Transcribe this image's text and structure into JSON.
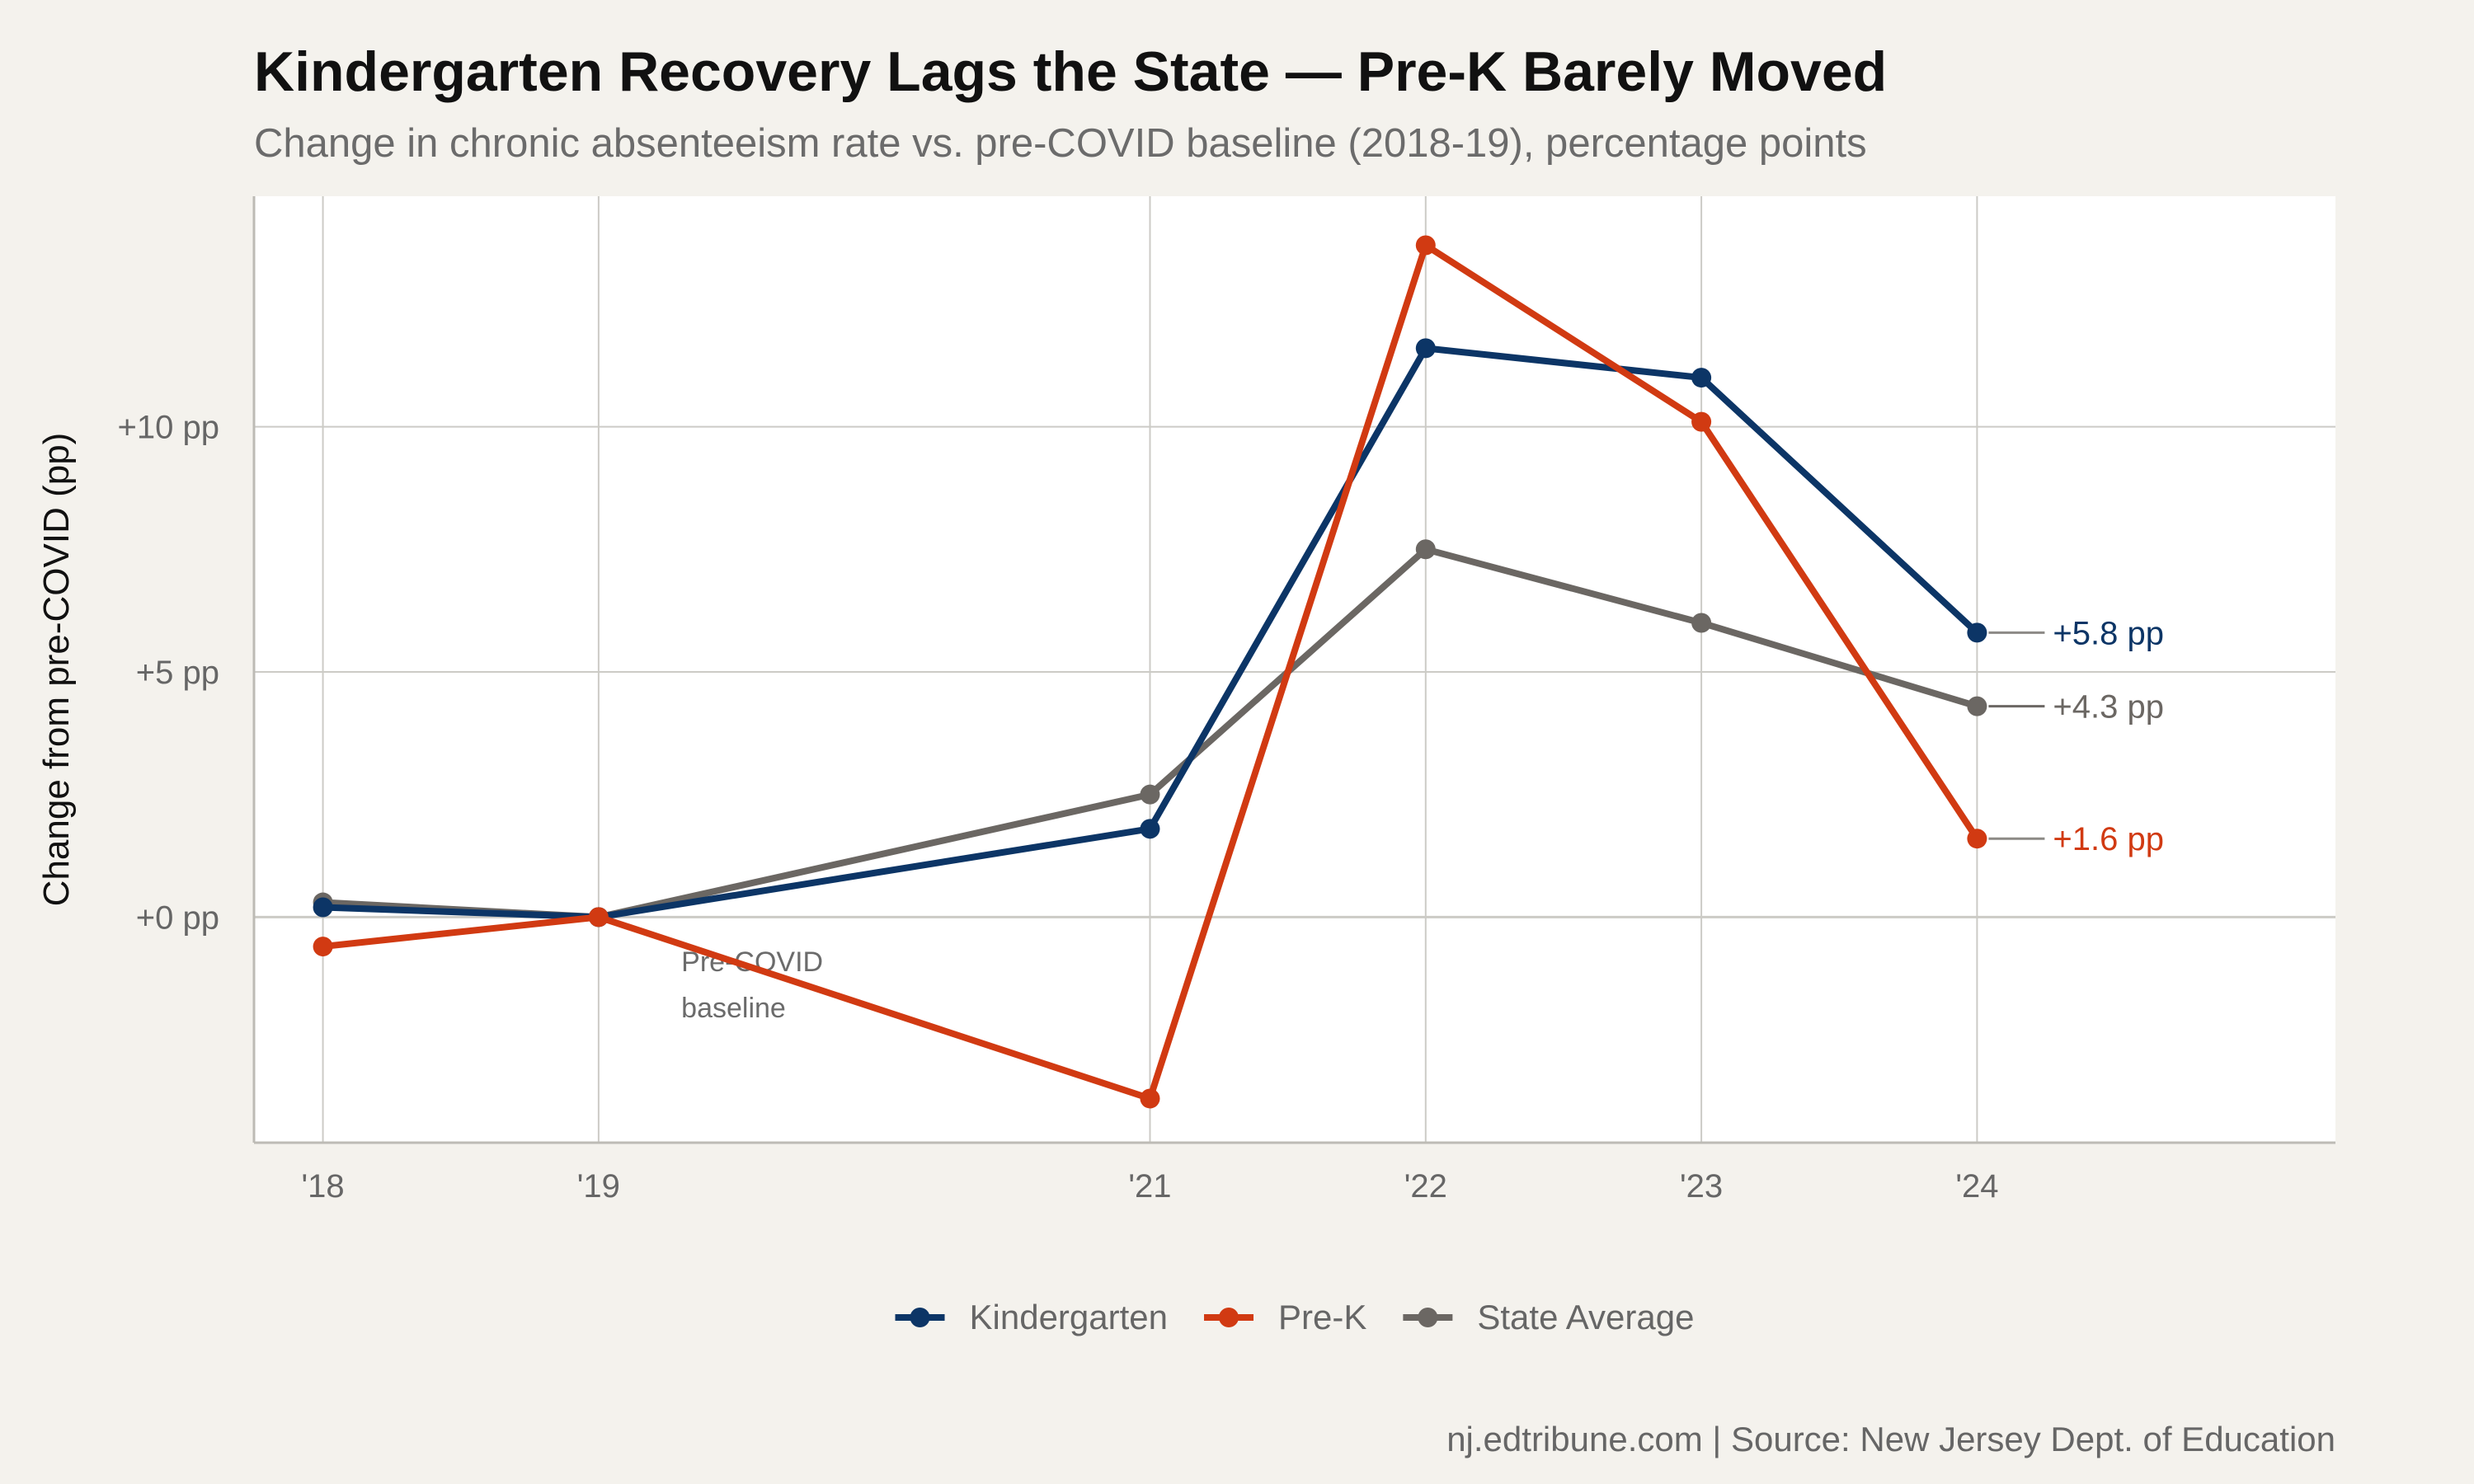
{
  "title": "Kindergarten Recovery Lags the State — Pre-K Barely Moved",
  "subtitle": "Change in chronic absenteeism rate vs. pre-COVID baseline (2018-19), percentage points",
  "caption": "nj.edtribune.com | Source: New Jersey Dept. of Education",
  "colors": {
    "background": "#f4f2ed",
    "panel": "#ffffff",
    "grid": "#cccbc6",
    "kindergarten": "#0c3566",
    "prek": "#d13a12",
    "state": "#6b6763"
  },
  "chart_data": {
    "type": "line",
    "title": "Kindergarten Recovery Lags the State — Pre-K Barely Moved",
    "subtitle": "Change in chronic absenteeism rate vs. pre-COVID baseline (2018-19), percentage points",
    "ylabel": "Change from pre-COVID (pp)",
    "xlabel": "",
    "x_values": [
      2018,
      2019,
      2021,
      2022,
      2023,
      2024
    ],
    "x_tick_labels": [
      "'18",
      "'19",
      "'21",
      "'22",
      "'23",
      "'24"
    ],
    "xlim": [
      2017.75,
      2025.3
    ],
    "y_ticks": [
      0,
      5,
      10
    ],
    "y_tick_labels": [
      "+0 pp",
      "+5 pp",
      "+10 pp"
    ],
    "ylim": [
      -4.6,
      14.7
    ],
    "grid": true,
    "legend_position": "bottom",
    "series": [
      {
        "name": "Kindergarten",
        "color": "#0c3566",
        "values": [
          0.2,
          0.0,
          1.8,
          11.6,
          11.0,
          5.8
        ],
        "end_label": "+5.8 pp"
      },
      {
        "name": "Pre-K",
        "color": "#d13a12",
        "values": [
          -0.6,
          0.0,
          -3.7,
          13.7,
          10.1,
          1.6
        ],
        "end_label": "+1.6 pp"
      },
      {
        "name": "State Average",
        "color": "#6b6763",
        "values": [
          0.3,
          0.0,
          2.5,
          7.5,
          6.0,
          4.3
        ],
        "end_label": "+4.3 pp"
      }
    ],
    "annotation": {
      "lines": [
        "Pre-COVID",
        "baseline"
      ],
      "x": 2019.3,
      "y": -1.1
    }
  }
}
